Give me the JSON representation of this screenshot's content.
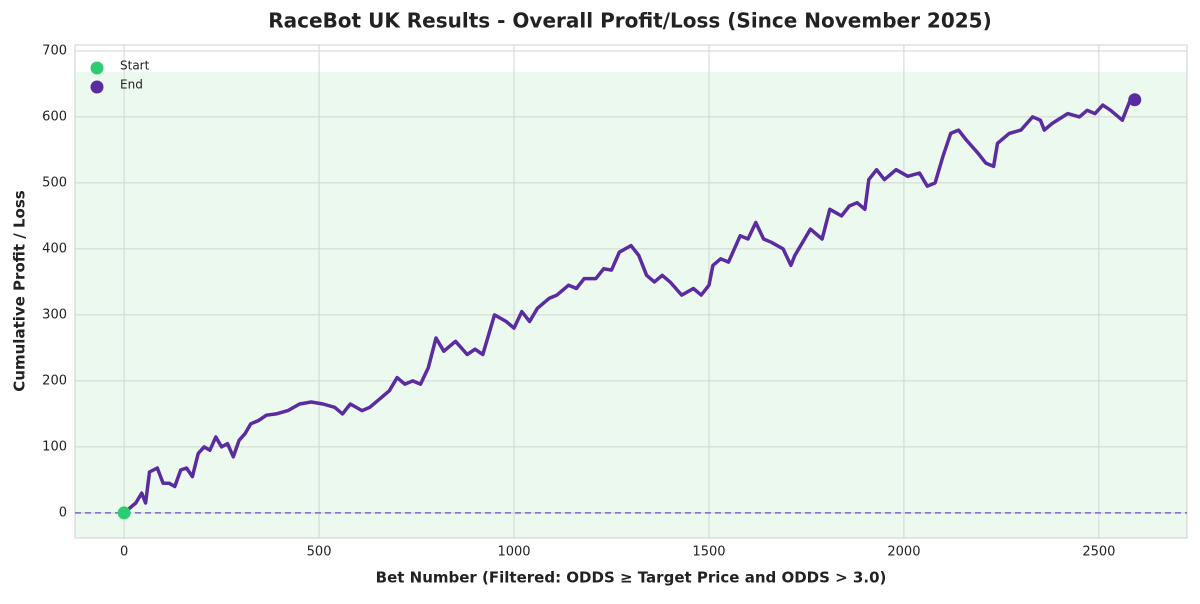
{
  "chart_data": {
    "type": "line",
    "title": "RaceBot UK Results - Overall Profit/Loss (Since November 2025)",
    "xlabel": "Bet Number (Filtered: ODDS ≥ Target Price and ODDS > 3.0)",
    "ylabel": "Cumulative Profit / Loss",
    "x": [
      0,
      30,
      45,
      55,
      65,
      85,
      100,
      115,
      130,
      145,
      160,
      175,
      190,
      205,
      220,
      235,
      250,
      265,
      280,
      295,
      310,
      325,
      345,
      365,
      390,
      420,
      450,
      480,
      510,
      540,
      560,
      580,
      610,
      630,
      660,
      680,
      700,
      720,
      740,
      760,
      780,
      800,
      820,
      850,
      880,
      900,
      920,
      950,
      980,
      1000,
      1020,
      1040,
      1060,
      1090,
      1110,
      1140,
      1160,
      1180,
      1210,
      1230,
      1250,
      1270,
      1300,
      1320,
      1340,
      1360,
      1380,
      1400,
      1430,
      1460,
      1480,
      1500,
      1510,
      1530,
      1550,
      1580,
      1600,
      1620,
      1640,
      1660,
      1690,
      1710,
      1720,
      1760,
      1790,
      1810,
      1840,
      1860,
      1880,
      1900,
      1910,
      1930,
      1950,
      1980,
      2010,
      2040,
      2060,
      2080,
      2100,
      2120,
      2140,
      2160,
      2190,
      2210,
      2230,
      2240,
      2270,
      2300,
      2330,
      2350,
      2360,
      2380,
      2420,
      2450,
      2470,
      2490,
      2510,
      2530,
      2560,
      2580,
      2592
    ],
    "values": [
      0,
      15,
      30,
      15,
      62,
      68,
      45,
      45,
      40,
      65,
      68,
      55,
      90,
      100,
      95,
      115,
      100,
      105,
      85,
      110,
      120,
      135,
      140,
      148,
      150,
      155,
      165,
      168,
      165,
      160,
      150,
      165,
      155,
      160,
      175,
      185,
      205,
      195,
      200,
      195,
      220,
      265,
      245,
      260,
      240,
      248,
      240,
      300,
      290,
      280,
      305,
      290,
      310,
      325,
      330,
      345,
      340,
      355,
      355,
      370,
      368,
      395,
      405,
      390,
      360,
      350,
      360,
      350,
      330,
      340,
      330,
      345,
      375,
      385,
      380,
      420,
      415,
      440,
      415,
      410,
      400,
      375,
      390,
      430,
      415,
      460,
      450,
      465,
      470,
      460,
      505,
      520,
      505,
      520,
      510,
      515,
      495,
      500,
      540,
      575,
      580,
      565,
      545,
      530,
      525,
      560,
      575,
      580,
      600,
      595,
      580,
      590,
      605,
      600,
      610,
      605,
      618,
      610,
      595,
      625,
      626
    ],
    "color": "#5b2c9f",
    "markers": [
      {
        "name": "Start",
        "color": "#2ecc71",
        "x": 0,
        "y": 0
      },
      {
        "name": "End",
        "color": "#5b2c9f",
        "x": 2592,
        "y": 626
      }
    ],
    "hline": {
      "value": 0,
      "color": "#7b68c8"
    },
    "band": {
      "from": -38,
      "to": 668,
      "color": "#ebf9ef"
    },
    "xlim": [
      -126,
      2726
    ],
    "ylim": [
      -38,
      709
    ],
    "xticks": [
      0,
      500,
      1000,
      1500,
      2000,
      2500
    ],
    "yticks": [
      0,
      100,
      200,
      300,
      400,
      500,
      600,
      700
    ],
    "grid": true,
    "legend": "upper left"
  }
}
